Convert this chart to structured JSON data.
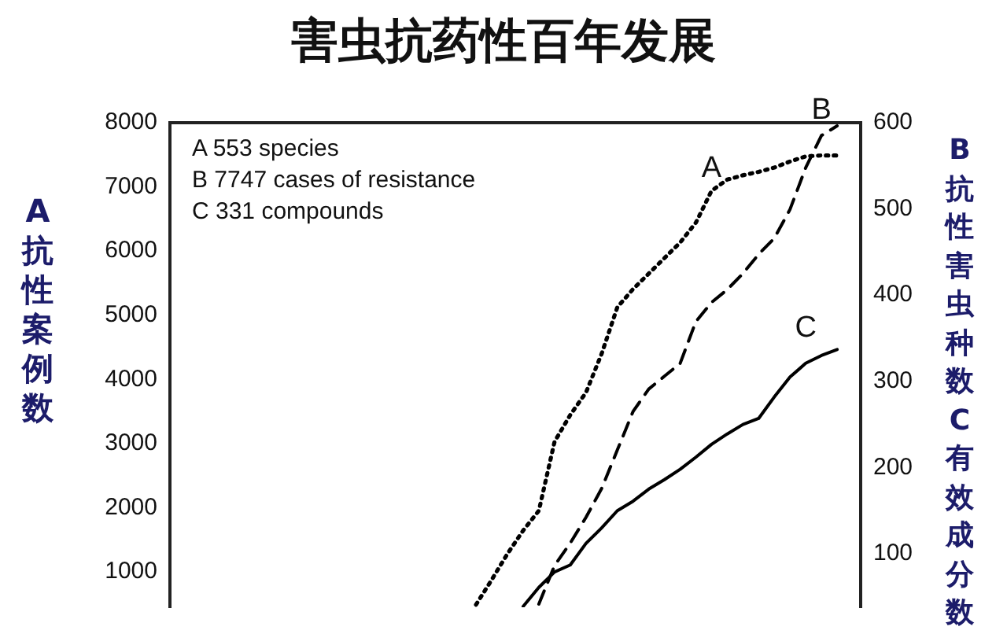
{
  "chart_data": {
    "type": "line",
    "title": "害虫抗药性百年发展",
    "ylabel": "A抗性案例数",
    "y2label": "B抗性害虫种数C有效成分数",
    "annotations": [
      "A 553 species",
      "B 7747 cases of resistance",
      "C 331 compounds"
    ],
    "categories": [
      null,
      null,
      null,
      null,
      null,
      null,
      null,
      null,
      null,
      null,
      null,
      null,
      null,
      null,
      null,
      null,
      null,
      null,
      null,
      null,
      null,
      null,
      null,
      null,
      null,
      null,
      null,
      null,
      null,
      null,
      null,
      null,
      null,
      null,
      null,
      null,
      null,
      null,
      null,
      null,
      null,
      null,
      null,
      null
    ],
    "series": [
      {
        "name": "A",
        "color": "#000000",
        "axis": "y2",
        "line_style": "dotted",
        "values": [
          null,
          null,
          null,
          null,
          null,
          null,
          null,
          null,
          null,
          null,
          null,
          null,
          null,
          null,
          null,
          null,
          null,
          null,
          null,
          41,
          70,
          100,
          127,
          150,
          230,
          261,
          287,
          332,
          386,
          407,
          425,
          443,
          461,
          484,
          521,
          534,
          539,
          543,
          548,
          555,
          561,
          562,
          562,
          null
        ]
      },
      {
        "name": "B",
        "color": "#000000",
        "axis": "y",
        "line_style": "dashed",
        "values": [
          null,
          null,
          null,
          null,
          null,
          null,
          null,
          null,
          null,
          null,
          null,
          null,
          null,
          null,
          null,
          null,
          null,
          null,
          null,
          null,
          null,
          null,
          null,
          500,
          1100,
          1450,
          1850,
          2300,
          2900,
          3500,
          3850,
          4050,
          4250,
          4900,
          5200,
          5400,
          5650,
          5950,
          6200,
          6650,
          7300,
          7800,
          7950,
          null
        ]
      },
      {
        "name": "C",
        "color": "#000000",
        "axis": "y2",
        "line_style": "solid",
        "values": [
          null,
          null,
          null,
          null,
          null,
          null,
          null,
          null,
          null,
          null,
          null,
          null,
          null,
          null,
          null,
          null,
          null,
          null,
          null,
          null,
          null,
          null,
          39,
          61,
          79,
          87,
          112,
          130,
          150,
          161,
          175,
          186,
          198,
          212,
          227,
          239,
          250,
          257,
          282,
          305,
          321,
          330,
          337,
          null
        ]
      }
    ],
    "ylim": [
      450,
      8000
    ],
    "yticks": [
      1000,
      2000,
      3000,
      4000,
      5000,
      6000,
      7000,
      8000
    ],
    "y2lim": [
      38,
      600
    ],
    "y2ticks": [
      100,
      200,
      300,
      400,
      500,
      600
    ],
    "tick_labels": "y",
    "grid": false,
    "legend": false,
    "marker": "none"
  }
}
